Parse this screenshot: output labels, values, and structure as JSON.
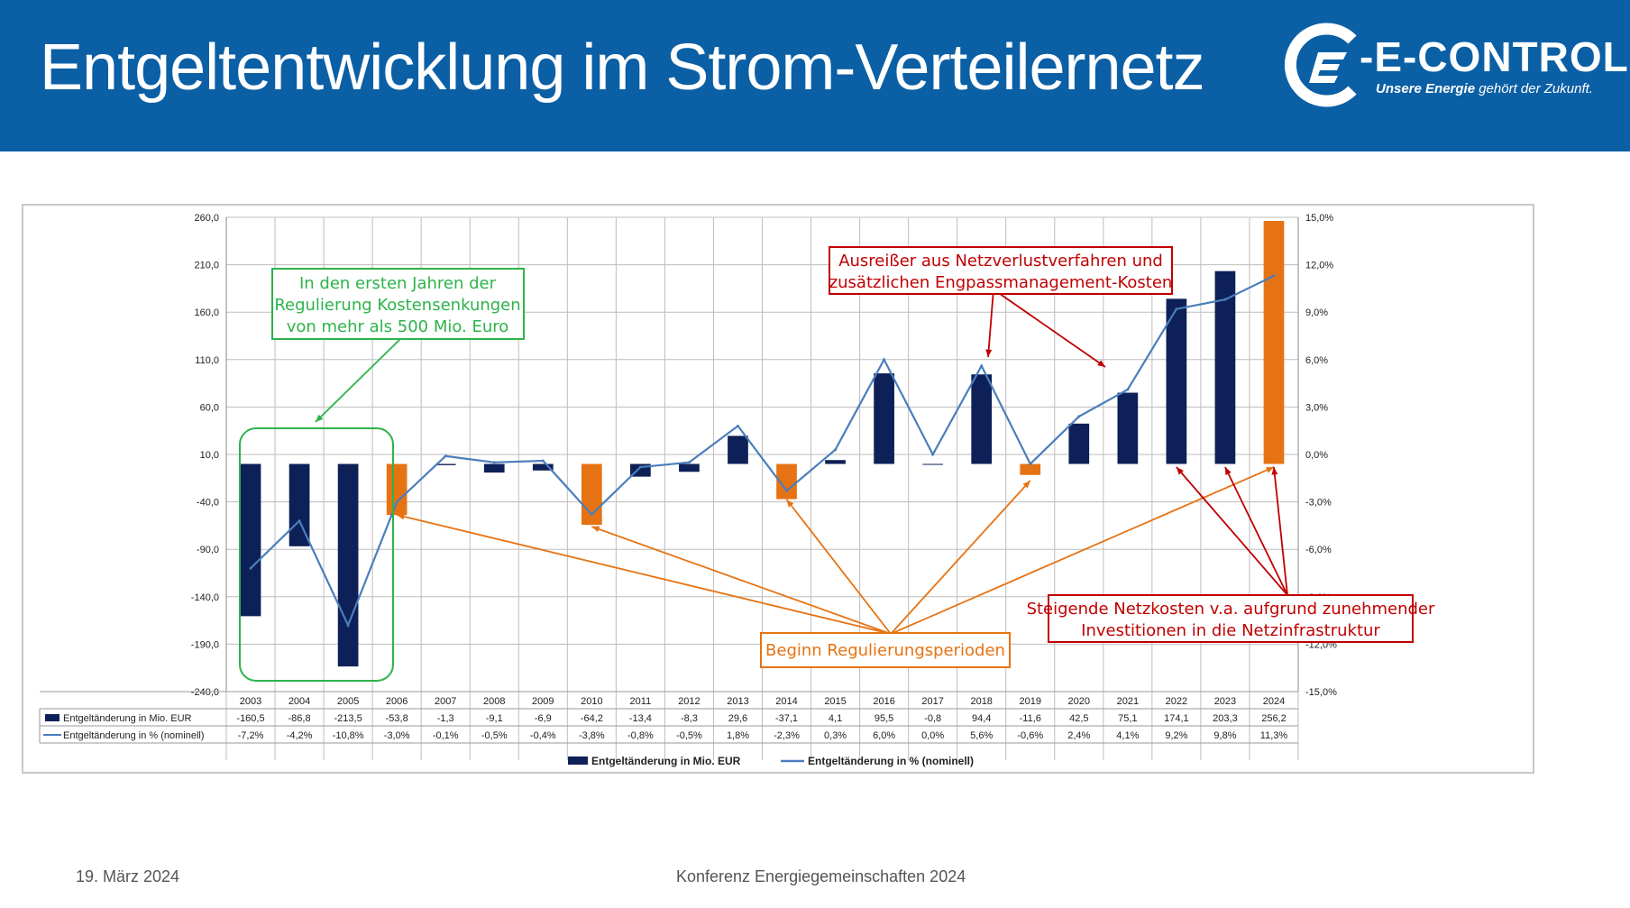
{
  "slide": {
    "title": "Entgeltentwicklung im Strom-Verteilernetz",
    "footer_date": "19. März 2024",
    "footer_event": "Konferenz Energiegemeinschaften 2024"
  },
  "logo": {
    "name": "E-CONTROL",
    "tagline_bold": "Unsere Energie",
    "tagline_rest": " gehört der Zukunft."
  },
  "colors": {
    "header_bg": "#0b5fa5",
    "bar_navy": "#0d2057",
    "bar_orange": "#e67313",
    "line_blue": "#4a7ebb",
    "green_box": "#2db34a",
    "orange_box": "#e67313",
    "red_box": "#c00000"
  },
  "annotations": {
    "green": [
      "In den ersten Jahren der",
      "Regulierung Kostensenkungen",
      "von mehr als 500 Mio. Euro"
    ],
    "orange": [
      "Beginn Regulierungsperioden"
    ],
    "red_top": [
      "Ausreißer aus Netzverlustverfahren und",
      "zusätzlichen Engpassmanagement-Kosten"
    ],
    "red_bottom": [
      "Steigende Netzkosten v.a. aufgrund zunehmender",
      "Investitionen in die Netzinfrastruktur"
    ]
  },
  "chart_data": {
    "type": "bar",
    "categories": [
      "2003",
      "2004",
      "2005",
      "2006",
      "2007",
      "2008",
      "2009",
      "2010",
      "2011",
      "2012",
      "2013",
      "2014",
      "2015",
      "2016",
      "2017",
      "2018",
      "2019",
      "2020",
      "2021",
      "2022",
      "2023",
      "2024"
    ],
    "series": [
      {
        "name": "Entgeltänderung in Mio. EUR",
        "type": "bar",
        "axis": "left",
        "values": [
          -160.5,
          -86.8,
          -213.5,
          -53.8,
          -1.3,
          -9.1,
          -6.9,
          -64.2,
          -13.4,
          -8.3,
          29.6,
          -37.1,
          4.1,
          95.5,
          -0.8,
          94.4,
          -11.6,
          42.5,
          75.1,
          174.1,
          203.3,
          256.2
        ],
        "labels": [
          "-160,5",
          "-86,8",
          "-213,5",
          "-53,8",
          "-1,3",
          "-9,1",
          "-6,9",
          "-64,2",
          "-13,4",
          "-8,3",
          "29,6",
          "-37,1",
          "4,1",
          "95,5",
          "-0,8",
          "94,4",
          "-11,6",
          "42,5",
          "75,1",
          "174,1",
          "203,3",
          "256,2"
        ],
        "highlight_orange": [
          "2006",
          "2010",
          "2014",
          "2019",
          "2024"
        ]
      },
      {
        "name": "Entgeltänderung in % (nominell)",
        "type": "line",
        "axis": "right",
        "values": [
          -7.2,
          -4.2,
          -10.8,
          -3.0,
          -0.1,
          -0.5,
          -0.4,
          -3.8,
          -0.8,
          -0.5,
          1.8,
          -2.3,
          0.3,
          6.0,
          0.0,
          5.6,
          -0.6,
          2.4,
          4.1,
          9.2,
          9.8,
          11.3
        ],
        "labels": [
          "-7,2%",
          "-4,2%",
          "-10,8%",
          "-3,0%",
          "-0,1%",
          "-0,5%",
          "-0,4%",
          "-3,8%",
          "-0,8%",
          "-0,5%",
          "1,8%",
          "-2,3%",
          "0,3%",
          "6,0%",
          "0,0%",
          "5,6%",
          "-0,6%",
          "2,4%",
          "4,1%",
          "9,2%",
          "9,8%",
          "11,3%"
        ]
      }
    ],
    "y_left": {
      "ylim": [
        -240,
        260
      ],
      "ticks": [
        260,
        210,
        160,
        110,
        60,
        10,
        -40,
        -90,
        -140,
        -190,
        -240
      ],
      "tick_labels": [
        "260,0",
        "210,0",
        "160,0",
        "110,0",
        "60,0",
        "10,0",
        "-40,0",
        "-90,0",
        "-140,0",
        "-190,0",
        "-240,0"
      ]
    },
    "y_right": {
      "ylim": [
        -15,
        15
      ],
      "ticks": [
        15,
        12,
        9,
        6,
        3,
        0,
        -3,
        -6,
        -9,
        -12,
        -15
      ],
      "tick_labels": [
        "15,0%",
        "12,0%",
        "9,0%",
        "6,0%",
        "3,0%",
        "0,0%",
        "-3,0%",
        "-6,0%",
        "-9,0%",
        "-12,0%",
        "-15,0%"
      ]
    },
    "grid": true,
    "legend_placement": "bottom-center",
    "data_table": true
  }
}
